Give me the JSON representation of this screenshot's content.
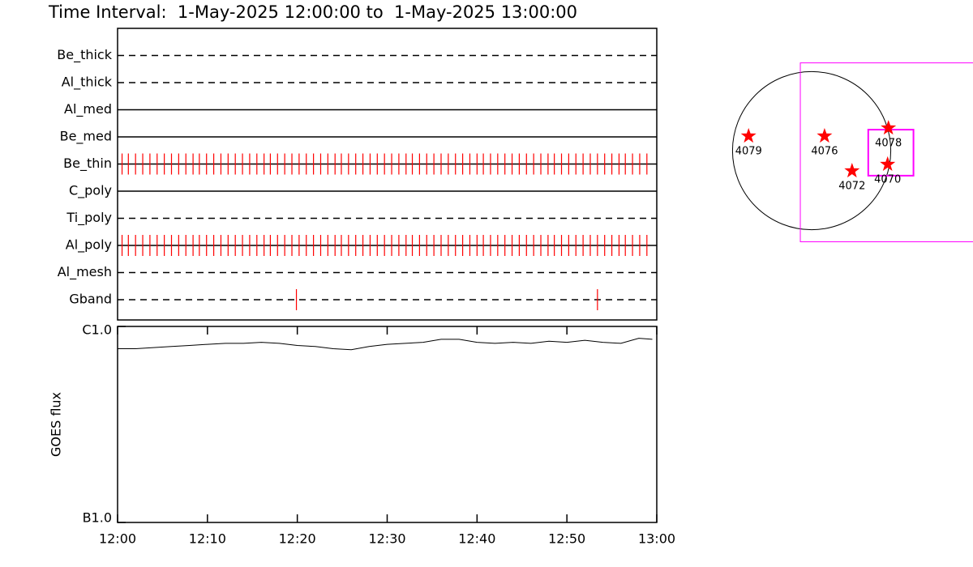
{
  "chart_data": [
    {
      "type": "timeline",
      "title": "Time Interval:  1-May-2025 12:00:00 to  1-May-2025 13:00:00",
      "xlim": [
        0,
        60
      ],
      "color": "#ff0000",
      "series": [
        {
          "name": "Be_thick",
          "style": "dashed",
          "x": []
        },
        {
          "name": "Al_thick",
          "style": "dashed",
          "x": []
        },
        {
          "name": "Al_med",
          "style": "solid",
          "x": []
        },
        {
          "name": "Be_med",
          "style": "solid",
          "x": []
        },
        {
          "name": "Be_thin",
          "style": "solid",
          "x": [
            0.5,
            1.2,
            2.0,
            2.8,
            3.6,
            4.4,
            5.2,
            6.0,
            6.8,
            7.6,
            8.4,
            9.1,
            9.9,
            10.7,
            11.5,
            12.3,
            13.1,
            13.9,
            14.7,
            15.5,
            16.3,
            17.0,
            17.8,
            18.6,
            19.4,
            20.2,
            21.0,
            21.8,
            22.6,
            23.4,
            24.2,
            24.9,
            25.7,
            26.5,
            27.3,
            28.1,
            28.9,
            29.7,
            30.5,
            31.3,
            32.1,
            32.8,
            33.6,
            34.4,
            35.2,
            36.0,
            36.8,
            37.6,
            38.4,
            39.2,
            40.0,
            40.7,
            41.5,
            42.3,
            43.1,
            43.9,
            44.7,
            45.5,
            46.3,
            47.1,
            47.9,
            48.6,
            49.4,
            50.2,
            51.0,
            51.8,
            52.6,
            53.4,
            54.2,
            55.0,
            55.8,
            56.5,
            57.3,
            58.1,
            58.9
          ]
        },
        {
          "name": "C_poly",
          "style": "solid",
          "x": []
        },
        {
          "name": "Ti_poly",
          "style": "dashed",
          "x": []
        },
        {
          "name": "Al_poly",
          "style": "solid",
          "x": [
            0.5,
            1.2,
            2.0,
            2.8,
            3.6,
            4.4,
            5.2,
            6.0,
            6.8,
            7.6,
            8.4,
            9.1,
            9.9,
            10.7,
            11.5,
            12.3,
            13.1,
            13.9,
            14.7,
            15.5,
            16.3,
            17.0,
            17.8,
            18.6,
            19.4,
            20.2,
            21.0,
            21.8,
            22.6,
            23.4,
            24.2,
            24.9,
            25.7,
            26.5,
            27.3,
            28.1,
            28.9,
            29.7,
            30.5,
            31.3,
            32.1,
            32.8,
            33.6,
            34.4,
            35.2,
            36.0,
            36.8,
            37.6,
            38.4,
            39.2,
            40.0,
            40.7,
            41.5,
            42.3,
            43.1,
            43.9,
            44.7,
            45.5,
            46.3,
            47.1,
            47.9,
            48.6,
            49.4,
            50.2,
            51.0,
            51.8,
            52.6,
            53.4,
            54.2,
            55.0,
            55.8,
            56.5,
            57.3,
            58.1,
            58.9
          ]
        },
        {
          "name": "Al_mesh",
          "style": "dashed",
          "x": []
        },
        {
          "name": "Gband",
          "style": "dashed",
          "x": [
            19.9,
            53.4
          ]
        }
      ]
    },
    {
      "type": "line",
      "ylabel": "GOES flux",
      "log_y": true,
      "color": "#000000",
      "xlim": [
        0,
        60
      ],
      "xticks": [
        {
          "value": 0,
          "label": "12:00"
        },
        {
          "value": 10,
          "label": "12:10"
        },
        {
          "value": 20,
          "label": "12:20"
        },
        {
          "value": 30,
          "label": "12:30"
        },
        {
          "value": 40,
          "label": "12:40"
        },
        {
          "value": 50,
          "label": "12:50"
        },
        {
          "value": 60,
          "label": "13:00"
        }
      ],
      "ylim": [
        1e-07,
        1e-06
      ],
      "yticks": [
        {
          "value": 1e-07,
          "label": "B1.0"
        },
        {
          "value": 1e-06,
          "label": "C1.0"
        }
      ],
      "x": [
        0,
        2,
        4,
        6,
        8,
        10,
        12,
        14,
        16,
        18,
        20,
        22,
        24,
        26,
        28,
        30,
        32,
        34,
        36,
        38,
        40,
        42,
        44,
        46,
        48,
        50,
        52,
        54,
        56,
        58,
        59.5
      ],
      "values": [
        7.7e-07,
        7.7e-07,
        7.8e-07,
        7.9e-07,
        8e-07,
        8.1e-07,
        8.2e-07,
        8.2e-07,
        8.3e-07,
        8.2e-07,
        8e-07,
        7.9e-07,
        7.7e-07,
        7.6e-07,
        7.9e-07,
        8.1e-07,
        8.2e-07,
        8.3e-07,
        8.6e-07,
        8.6e-07,
        8.3e-07,
        8.2e-07,
        8.3e-07,
        8.2e-07,
        8.4e-07,
        8.3e-07,
        8.5e-07,
        8.3e-07,
        8.2e-07,
        8.7e-07,
        8.6e-07
      ]
    },
    {
      "type": "map",
      "xlim": [
        -1100,
        1100
      ],
      "ylim": [
        -1100,
        1100
      ],
      "rsun": 950,
      "color": "#ff0000",
      "fov_color": "#ff00ff",
      "points": [
        {
          "label": "4079",
          "x": -757,
          "y": 175
        },
        {
          "label": "4076",
          "x": 155,
          "y": 175
        },
        {
          "label": "4078",
          "x": 922,
          "y": 272
        },
        {
          "label": "4072",
          "x": 485,
          "y": -243
        },
        {
          "label": "4070",
          "x": 912,
          "y": -165
        }
      ],
      "fov": [
        {
          "center": [
            939,
            -20
          ],
          "size": [
            2150,
            2150
          ]
        },
        {
          "center": [
            951,
            -24
          ],
          "size": [
            543,
            553
          ]
        }
      ]
    }
  ]
}
